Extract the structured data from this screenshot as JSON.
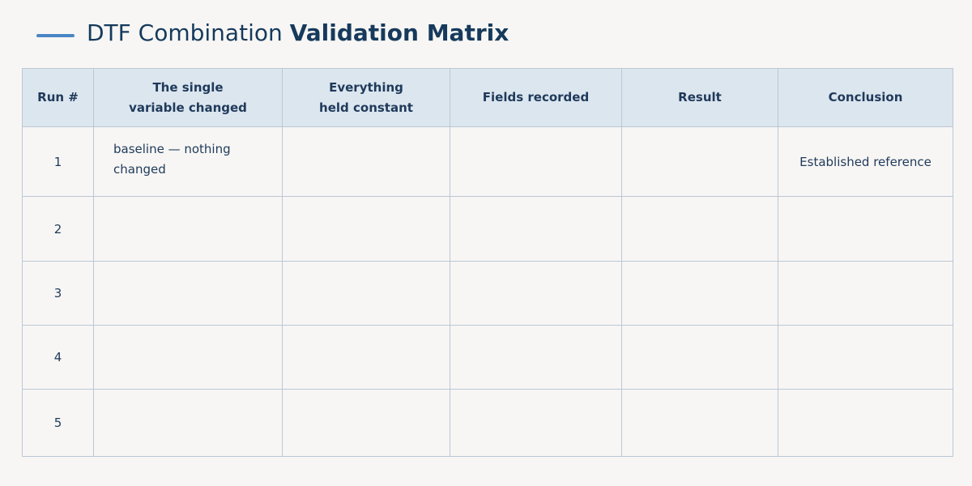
{
  "header": {
    "title_regular": "DTF Combination",
    "title_bold": "Validation Matrix"
  },
  "table": {
    "columns": [
      "Run #",
      "The single variable changed",
      "Everything held constant",
      "Fields recorded",
      "Result",
      "Conclusion"
    ],
    "rows": [
      {
        "run": 1,
        "variable": "baseline — nothing changed",
        "conclusion": "Established reference"
      },
      {
        "run": 2
      },
      {
        "run": 3
      },
      {
        "run": 4
      },
      {
        "run": 5
      }
    ]
  }
}
